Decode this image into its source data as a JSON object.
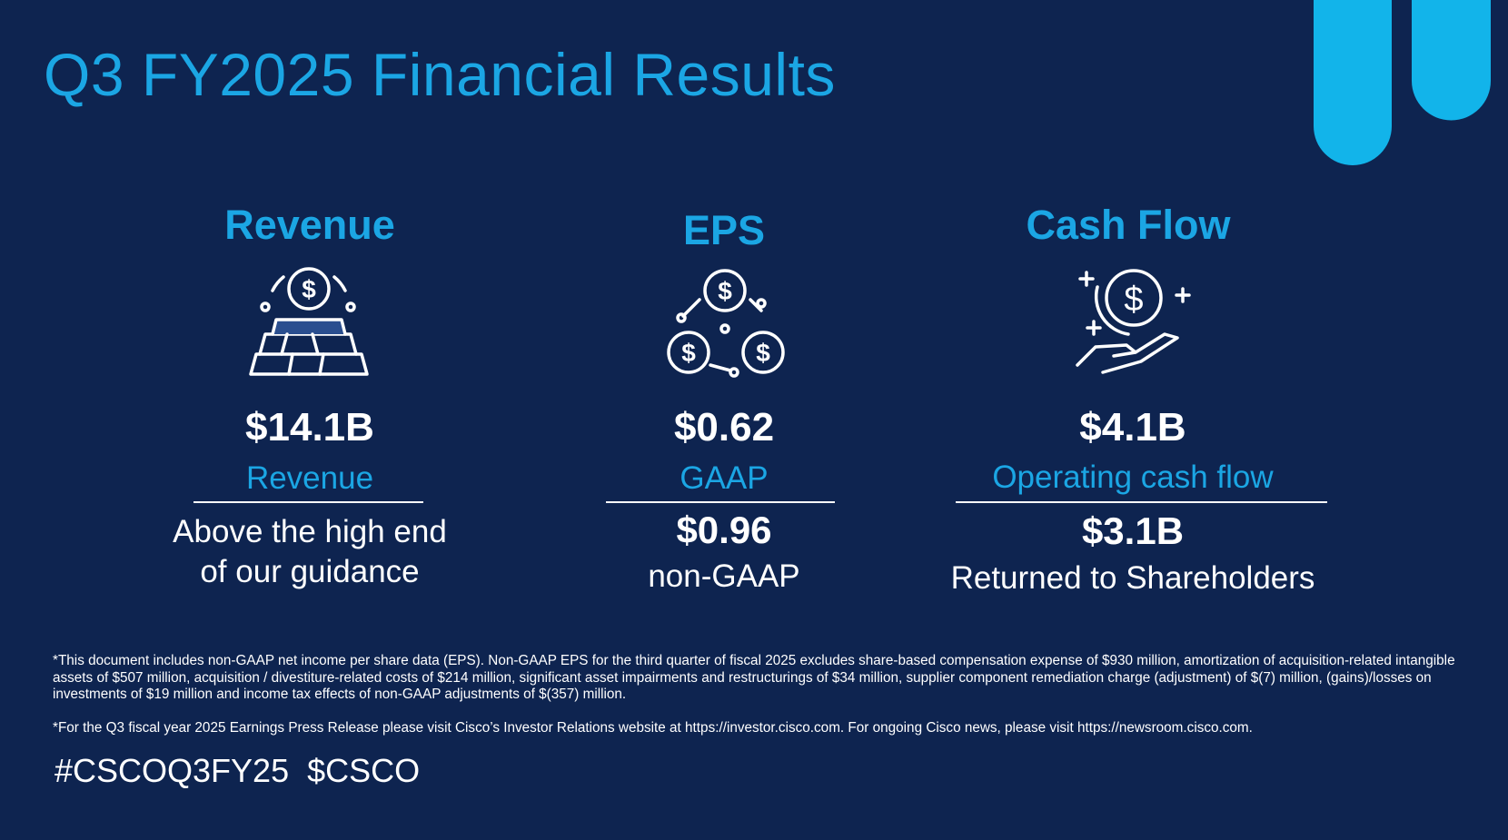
{
  "title": "Q3 FY2025 Financial Results",
  "metrics": [
    {
      "heading": "Revenue",
      "value": "$14.1B",
      "label": "Revenue",
      "note": "Above the high end of our guidance"
    },
    {
      "heading": "EPS",
      "value": "$0.62",
      "label": "GAAP",
      "value2": "$0.96",
      "note": "non-GAAP"
    },
    {
      "heading": "Cash Flow",
      "value": "$4.1B",
      "label": "Operating cash flow",
      "value2": "$3.1B",
      "note": "Returned to Shareholders"
    }
  ],
  "footnotes": [
    "*This document includes non-GAAP net income per share data (EPS). Non-GAAP EPS for the third quarter of fiscal 2025 excludes share-based compensation expense of $930 million, amortization of acquisition-related intangible assets of $507 million, acquisition / divestiture-related costs of $214 million, significant asset impairments and restructurings of $34 million, supplier component remediation charge (adjustment) of $(7) million, (gains)/losses on investments of $19 million and income tax effects of non-GAAP adjustments of $(357) million.",
    "*For the Q3 fiscal year 2025 Earnings Press Release please visit Cisco’s Investor Relations website at https://investor.cisco.com. For ongoing Cisco news, please visit https://newsroom.cisco.com."
  ],
  "hashtags": "#CSCOQ3FY25  $CSCO"
}
